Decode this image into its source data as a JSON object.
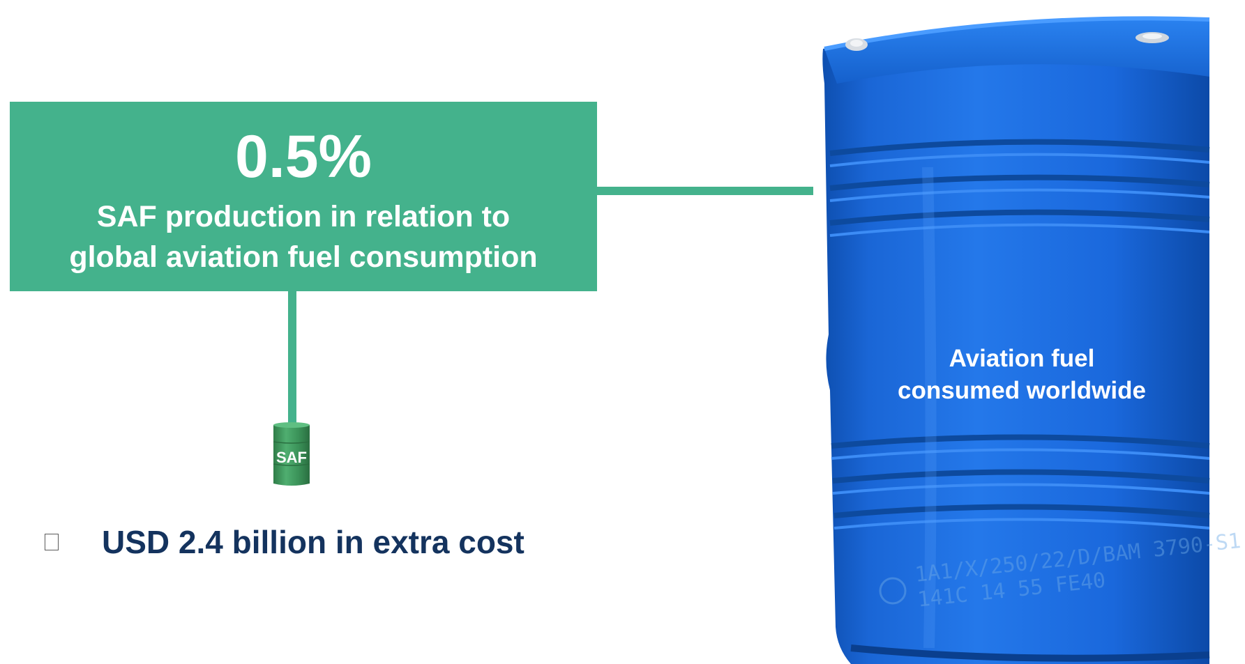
{
  "stat": {
    "value": "0.5%",
    "line1": "SAF production in relation to",
    "line2": "global aviation fuel consumption"
  },
  "small_barrel": {
    "label": "SAF",
    "color": "#3d9a5e"
  },
  "bullet": {
    "text": "USD 2.4 billion in extra cost"
  },
  "big_barrel": {
    "label_line1": "Aviation fuel",
    "label_line2": "consumed worldwide",
    "color": "#1d6ee0",
    "stamp_line1": "1A1/X/250/22/D/BAM 3790-S1",
    "stamp_line2": "141C 14 55 FE40"
  },
  "colors": {
    "accent_green": "#44b28c",
    "bullet_text": "#14335e"
  }
}
